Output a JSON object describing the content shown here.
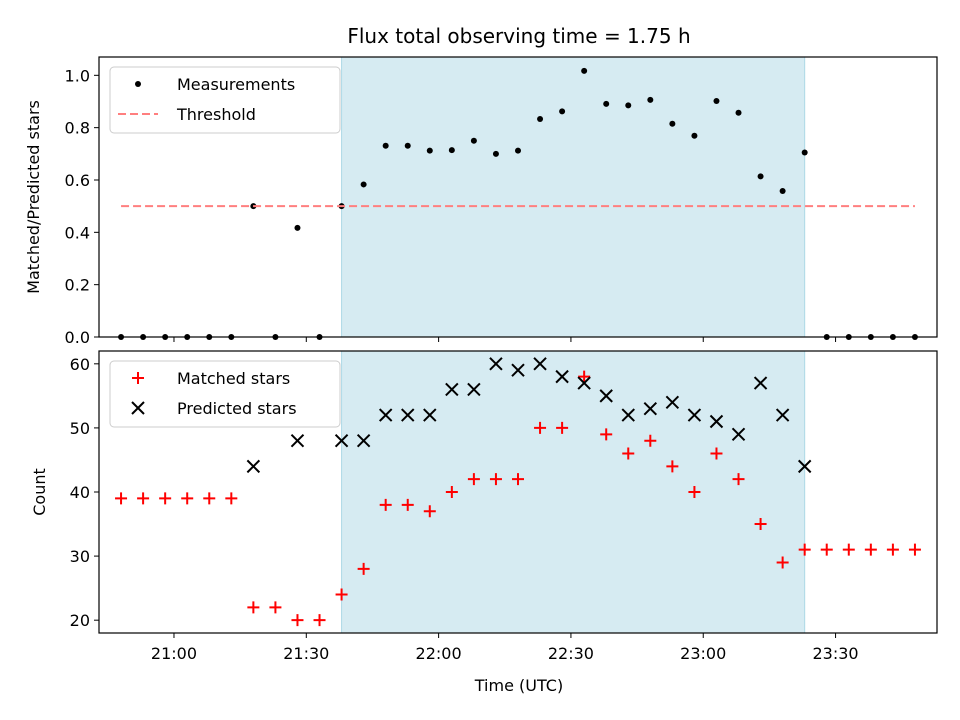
{
  "chart_data": [
    {
      "type": "scatter",
      "title": "Flux total observing time = 1.75 h",
      "xlabel": "",
      "ylabel": "Matched/Predicted stars",
      "ylim": [
        0,
        1.07
      ],
      "yticks": [
        "0.0",
        "0.2",
        "0.4",
        "0.6",
        "0.8",
        "1.0"
      ],
      "xtick_labels_visible": false,
      "legend_position": "top-left",
      "shaded_span": {
        "from": "21:38",
        "to": "23:23",
        "color": "#add8e6"
      },
      "series": [
        {
          "name": "Measurements",
          "marker": "dot",
          "color": "#000000",
          "points": [
            [
              "20:48",
              0.0
            ],
            [
              "20:53",
              0.0
            ],
            [
              "20:58",
              0.0
            ],
            [
              "21:03",
              0.0
            ],
            [
              "21:08",
              0.0
            ],
            [
              "21:13",
              0.0
            ],
            [
              "21:18",
              0.5
            ],
            [
              "21:23",
              0.0
            ],
            [
              "21:28",
              0.417
            ],
            [
              "21:33",
              0.0
            ],
            [
              "21:38",
              0.5
            ],
            [
              "21:43",
              0.583
            ],
            [
              "21:48",
              0.731
            ],
            [
              "21:53",
              0.731
            ],
            [
              "21:58",
              0.712
            ],
            [
              "22:03",
              0.714
            ],
            [
              "22:08",
              0.75
            ],
            [
              "22:13",
              0.7
            ],
            [
              "22:18",
              0.712
            ],
            [
              "22:23",
              0.833
            ],
            [
              "22:28",
              0.862
            ],
            [
              "22:33",
              1.017
            ],
            [
              "22:38",
              0.891
            ],
            [
              "22:43",
              0.885
            ],
            [
              "22:48",
              0.906
            ],
            [
              "22:53",
              0.815
            ],
            [
              "22:58",
              0.769
            ],
            [
              "23:03",
              0.902
            ],
            [
              "23:08",
              0.857
            ],
            [
              "23:13",
              0.614
            ],
            [
              "23:18",
              0.558
            ],
            [
              "23:23",
              0.705
            ],
            [
              "23:28",
              0.0
            ],
            [
              "23:33",
              0.0
            ],
            [
              "23:38",
              0.0
            ],
            [
              "23:43",
              0.0
            ],
            [
              "23:48",
              0.0
            ]
          ]
        },
        {
          "name": "Threshold",
          "style": "dashed",
          "color": "#ff7f7f",
          "points": [
            [
              "20:48",
              0.5
            ],
            [
              "23:48",
              0.5
            ]
          ]
        }
      ]
    },
    {
      "type": "scatter",
      "title": "",
      "xlabel": "Time (UTC)",
      "ylabel": "Count",
      "ylim": [
        18,
        62
      ],
      "yticks": [
        "20",
        "30",
        "40",
        "50",
        "60"
      ],
      "xticks": [
        "21:00",
        "21:30",
        "22:00",
        "22:30",
        "23:00",
        "23:30"
      ],
      "legend_position": "top-left",
      "shaded_span": {
        "from": "21:38",
        "to": "23:23",
        "color": "#add8e6"
      },
      "series": [
        {
          "name": "Matched stars",
          "marker": "plus",
          "color": "#ff0000",
          "points": [
            [
              "20:48",
              39
            ],
            [
              "20:53",
              39
            ],
            [
              "20:58",
              39
            ],
            [
              "21:03",
              39
            ],
            [
              "21:08",
              39
            ],
            [
              "21:13",
              39
            ],
            [
              "21:18",
              22
            ],
            [
              "21:23",
              22
            ],
            [
              "21:28",
              20
            ],
            [
              "21:33",
              20
            ],
            [
              "21:38",
              24
            ],
            [
              "21:43",
              28
            ],
            [
              "21:48",
              38
            ],
            [
              "21:53",
              38
            ],
            [
              "21:58",
              37
            ],
            [
              "22:03",
              40
            ],
            [
              "22:08",
              42
            ],
            [
              "22:13",
              42
            ],
            [
              "22:18",
              42
            ],
            [
              "22:23",
              50
            ],
            [
              "22:28",
              50
            ],
            [
              "22:33",
              58
            ],
            [
              "22:38",
              49
            ],
            [
              "22:43",
              46
            ],
            [
              "22:48",
              48
            ],
            [
              "22:53",
              44
            ],
            [
              "22:58",
              40
            ],
            [
              "23:03",
              46
            ],
            [
              "23:08",
              42
            ],
            [
              "23:13",
              35
            ],
            [
              "23:18",
              29
            ],
            [
              "23:23",
              31
            ],
            [
              "23:28",
              31
            ],
            [
              "23:33",
              31
            ],
            [
              "23:38",
              31
            ],
            [
              "23:43",
              31
            ],
            [
              "23:48",
              31
            ]
          ]
        },
        {
          "name": "Predicted stars",
          "marker": "x",
          "color": "#000000",
          "points": [
            [
              "21:18",
              44
            ],
            [
              "21:28",
              48
            ],
            [
              "21:38",
              48
            ],
            [
              "21:43",
              48
            ],
            [
              "21:48",
              52
            ],
            [
              "21:53",
              52
            ],
            [
              "21:58",
              52
            ],
            [
              "22:03",
              56
            ],
            [
              "22:08",
              56
            ],
            [
              "22:13",
              60
            ],
            [
              "22:18",
              59
            ],
            [
              "22:23",
              60
            ],
            [
              "22:28",
              58
            ],
            [
              "22:33",
              57
            ],
            [
              "22:38",
              55
            ],
            [
              "22:43",
              52
            ],
            [
              "22:48",
              53
            ],
            [
              "22:53",
              54
            ],
            [
              "22:58",
              52
            ],
            [
              "23:03",
              51
            ],
            [
              "23:08",
              49
            ],
            [
              "23:13",
              57
            ],
            [
              "23:18",
              52
            ],
            [
              "23:23",
              44
            ]
          ]
        }
      ]
    }
  ]
}
